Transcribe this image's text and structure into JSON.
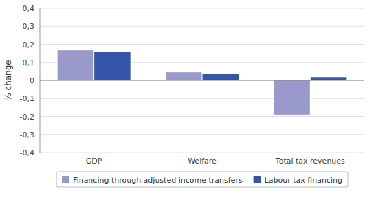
{
  "chart_data": {
    "type": "bar",
    "categories": [
      "GDP",
      "Welfare",
      "Total tax revenues"
    ],
    "series": [
      {
        "name": "Financing through adjusted income transfers",
        "color": "#9999CC",
        "values": [
          0.167,
          0.045,
          -0.19
        ]
      },
      {
        "name": "Labour tax financing",
        "color": "#3355AA",
        "values": [
          0.158,
          0.038,
          0.018
        ]
      }
    ],
    "ylabel": "% change",
    "ylim": [
      -0.4,
      0.4
    ],
    "yticks": [
      {
        "value": -0.4,
        "label": "-0,4"
      },
      {
        "value": -0.3,
        "label": "-0,3"
      },
      {
        "value": -0.2,
        "label": "-0,2"
      },
      {
        "value": -0.1,
        "label": "-0,1"
      },
      0,
      {
        "value": 0.1,
        "label": "0,1"
      },
      {
        "value": 0.2,
        "label": "0,2"
      },
      {
        "value": 0.3,
        "label": "0,3"
      },
      {
        "value": 0.4,
        "label": "0,4"
      }
    ],
    "grid": true,
    "legend": "bottom"
  }
}
